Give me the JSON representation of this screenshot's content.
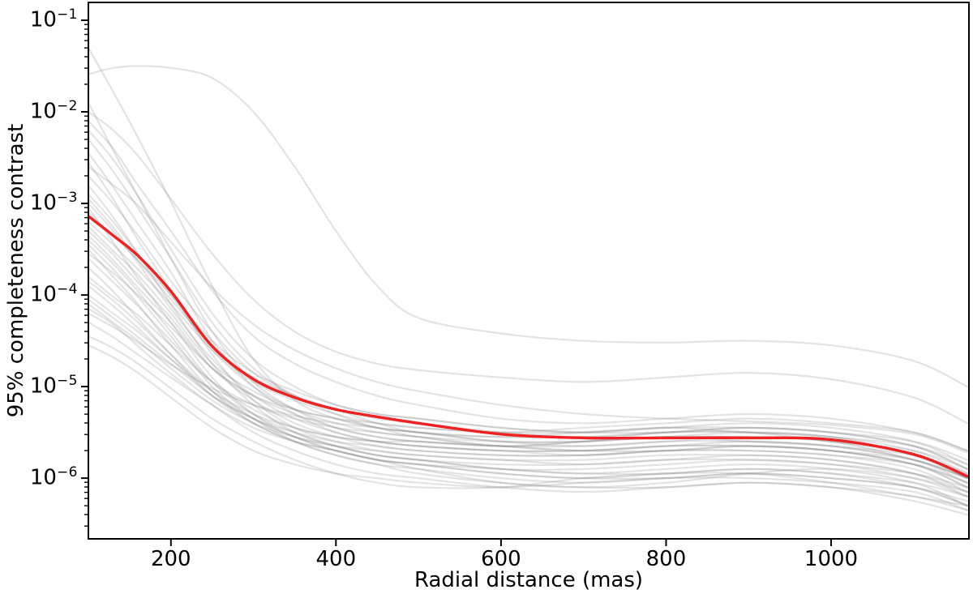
{
  "figure": {
    "background": "#ffffff",
    "colors": {
      "median_line": "#ee2222",
      "ensemble_line": "#808080",
      "ensemble_opacity": 0.22,
      "axes": "#000000",
      "text": "#000000"
    },
    "x_axis": {
      "title": "Radial distance (mas)",
      "tick_labels": [
        "200",
        "400",
        "600",
        "800",
        "1000"
      ],
      "tick_values": [
        200,
        400,
        600,
        800,
        1000
      ],
      "range_mas": [
        100,
        1167
      ]
    },
    "y_axis": {
      "title": "95% completeness contrast",
      "scale": "log",
      "tick_labels": [
        {
          "base": "10",
          "exp": "−1",
          "value": 0.1
        },
        {
          "base": "10",
          "exp": "−2",
          "value": 0.01
        },
        {
          "base": "10",
          "exp": "−3",
          "value": 0.001
        },
        {
          "base": "10",
          "exp": "−4",
          "value": 0.0001
        },
        {
          "base": "10",
          "exp": "−5",
          "value": 1e-05
        },
        {
          "base": "10",
          "exp": "−6",
          "value": 1e-06
        }
      ],
      "tick_exponents": [
        -1,
        -2,
        -3,
        -4,
        -5,
        -6
      ],
      "log10_range": [
        -6.663,
        -0.805
      ]
    }
  },
  "chart_data": {
    "type": "line",
    "title": "",
    "xlabel": "Radial distance (mas)",
    "ylabel": "95% completeness contrast",
    "x_scale": "linear",
    "y_scale": "log",
    "xlim": [
      100,
      1167
    ],
    "ylim_log10": [
      -6.663,
      -0.805
    ],
    "grid": false,
    "legend": "none",
    "x_mas": [
      100,
      130,
      160,
      200,
      250,
      300,
      350,
      400,
      450,
      500,
      600,
      700,
      800,
      900,
      1000,
      1100,
      1165
    ],
    "series": [
      {
        "name": "median contrast curve",
        "color": "#ee2222",
        "style": "solid",
        "width": 3.4,
        "log10_contrast": [
          -3.14,
          -3.35,
          -3.57,
          -3.96,
          -4.56,
          -4.92,
          -5.12,
          -5.25,
          -5.33,
          -5.4,
          -5.52,
          -5.56,
          -5.56,
          -5.56,
          -5.58,
          -5.74,
          -5.98
        ]
      }
    ],
    "ensemble": {
      "name": "individual target contrast curves",
      "color": "#808080",
      "opacity": 0.22,
      "width": 2.2,
      "curves_log10": [
        [
          -1.3,
          -1.78,
          -2.28,
          -2.98,
          -3.9,
          -4.7,
          -5.15,
          -5.35,
          -5.45,
          -5.5,
          -5.6,
          -5.65,
          -5.6,
          -5.55,
          -5.6,
          -5.8,
          -6.0
        ],
        [
          -1.59,
          -1.52,
          -1.5,
          -1.52,
          -1.63,
          -2.0,
          -2.6,
          -3.3,
          -3.9,
          -4.25,
          -4.42,
          -4.5,
          -4.52,
          -4.5,
          -4.55,
          -4.72,
          -5.0
        ],
        [
          -2.0,
          -2.2,
          -2.48,
          -2.95,
          -3.55,
          -4.05,
          -4.4,
          -4.62,
          -4.75,
          -4.82,
          -4.9,
          -4.95,
          -4.9,
          -4.85,
          -4.92,
          -5.12,
          -5.4
        ],
        [
          -2.1,
          -2.4,
          -2.8,
          -3.3,
          -3.95,
          -4.45,
          -4.75,
          -4.95,
          -5.1,
          -5.2,
          -5.35,
          -5.4,
          -5.35,
          -5.3,
          -5.35,
          -5.5,
          -5.7
        ],
        [
          -2.2,
          -2.52,
          -2.92,
          -3.5,
          -4.2,
          -4.7,
          -5.0,
          -5.2,
          -5.3,
          -5.35,
          -5.45,
          -5.5,
          -5.45,
          -5.4,
          -5.45,
          -5.6,
          -5.85
        ],
        [
          -2.3,
          -2.65,
          -3.05,
          -3.6,
          -4.3,
          -4.8,
          -5.1,
          -5.3,
          -5.45,
          -5.5,
          -5.6,
          -5.6,
          -5.55,
          -5.5,
          -5.55,
          -5.75,
          -6.0
        ],
        [
          -2.45,
          -2.82,
          -3.22,
          -3.75,
          -4.5,
          -5.0,
          -5.3,
          -5.5,
          -5.6,
          -5.65,
          -5.7,
          -5.75,
          -5.7,
          -5.65,
          -5.7,
          -5.85,
          -6.1
        ],
        [
          -2.55,
          -2.95,
          -3.4,
          -3.95,
          -4.65,
          -5.15,
          -5.45,
          -5.6,
          -5.7,
          -5.75,
          -5.8,
          -5.85,
          -5.8,
          -5.75,
          -5.8,
          -5.95,
          -6.2
        ],
        [
          -2.7,
          -3.0,
          -3.35,
          -3.85,
          -4.4,
          -4.85,
          -5.1,
          -5.25,
          -5.35,
          -5.4,
          -5.5,
          -5.55,
          -5.5,
          -5.45,
          -5.5,
          -5.65,
          -5.9
        ],
        [
          -2.8,
          -3.15,
          -3.55,
          -4.1,
          -4.75,
          -5.2,
          -5.5,
          -5.65,
          -5.75,
          -5.8,
          -5.9,
          -5.95,
          -5.9,
          -5.85,
          -5.9,
          -6.05,
          -6.3
        ],
        [
          -2.9,
          -3.2,
          -3.55,
          -4.0,
          -4.6,
          -5.0,
          -5.25,
          -5.4,
          -5.5,
          -5.55,
          -5.65,
          -5.7,
          -5.65,
          -5.6,
          -5.65,
          -5.8,
          -6.05
        ],
        [
          -3.0,
          -3.3,
          -3.65,
          -4.15,
          -4.7,
          -5.1,
          -5.35,
          -5.5,
          -5.6,
          -5.65,
          -5.7,
          -5.7,
          -5.65,
          -5.65,
          -5.7,
          -5.85,
          -6.1
        ],
        [
          -3.05,
          -3.42,
          -3.82,
          -4.3,
          -4.9,
          -5.3,
          -5.55,
          -5.7,
          -5.8,
          -5.85,
          -5.95,
          -6.0,
          -5.95,
          -5.9,
          -5.95,
          -6.1,
          -6.3
        ],
        [
          -3.1,
          -3.35,
          -3.62,
          -4.0,
          -4.5,
          -4.85,
          -5.05,
          -5.2,
          -5.3,
          -5.35,
          -5.45,
          -5.5,
          -5.5,
          -5.45,
          -5.5,
          -5.6,
          -5.8
        ],
        [
          -3.2,
          -3.45,
          -3.72,
          -4.1,
          -4.6,
          -4.95,
          -5.15,
          -5.3,
          -5.4,
          -5.45,
          -5.5,
          -5.5,
          -5.45,
          -5.45,
          -5.5,
          -5.65,
          -5.9
        ],
        [
          -3.3,
          -3.56,
          -3.86,
          -4.25,
          -4.8,
          -5.15,
          -5.4,
          -5.55,
          -5.65,
          -5.7,
          -5.75,
          -5.75,
          -5.7,
          -5.7,
          -5.75,
          -5.9,
          -6.15
        ],
        [
          -3.4,
          -3.66,
          -3.96,
          -4.4,
          -4.95,
          -5.3,
          -5.5,
          -5.65,
          -5.75,
          -5.8,
          -5.9,
          -5.9,
          -5.85,
          -5.8,
          -5.85,
          -6.0,
          -6.2
        ],
        [
          -3.5,
          -3.8,
          -4.1,
          -4.55,
          -5.05,
          -5.4,
          -5.6,
          -5.75,
          -5.85,
          -5.9,
          -6.0,
          -6.05,
          -6.0,
          -5.95,
          -6.0,
          -6.1,
          -6.25
        ],
        [
          -3.6,
          -3.86,
          -4.12,
          -4.5,
          -4.95,
          -5.25,
          -5.45,
          -5.55,
          -5.6,
          -5.65,
          -5.7,
          -5.7,
          -5.65,
          -5.65,
          -5.7,
          -5.85,
          -6.05
        ],
        [
          -3.7,
          -3.96,
          -4.26,
          -4.65,
          -5.1,
          -5.4,
          -5.6,
          -5.7,
          -5.8,
          -5.85,
          -5.9,
          -5.95,
          -5.95,
          -5.9,
          -5.95,
          -6.05,
          -6.2
        ],
        [
          -3.8,
          -4.02,
          -4.22,
          -4.55,
          -4.95,
          -5.2,
          -5.35,
          -5.45,
          -5.5,
          -5.55,
          -5.6,
          -5.6,
          -5.55,
          -5.55,
          -5.6,
          -5.75,
          -6.0
        ],
        [
          -3.9,
          -4.12,
          -4.36,
          -4.7,
          -5.1,
          -5.35,
          -5.55,
          -5.65,
          -5.7,
          -5.75,
          -5.8,
          -5.8,
          -5.75,
          -5.75,
          -5.8,
          -5.95,
          -6.15
        ],
        [
          -4.0,
          -4.2,
          -4.4,
          -4.7,
          -5.05,
          -5.3,
          -5.45,
          -5.55,
          -5.6,
          -5.6,
          -5.65,
          -5.65,
          -5.6,
          -5.6,
          -5.65,
          -5.8,
          -6.0
        ],
        [
          -4.1,
          -4.3,
          -4.5,
          -4.8,
          -5.15,
          -5.4,
          -5.55,
          -5.65,
          -5.75,
          -5.8,
          -5.85,
          -5.85,
          -5.8,
          -5.8,
          -5.85,
          -5.95,
          -6.1
        ],
        [
          -4.2,
          -4.35,
          -4.52,
          -4.76,
          -5.02,
          -5.2,
          -5.32,
          -5.4,
          -5.45,
          -5.5,
          -5.55,
          -5.55,
          -5.5,
          -5.5,
          -5.55,
          -5.7,
          -5.95
        ],
        [
          -4.3,
          -4.46,
          -4.65,
          -4.9,
          -5.2,
          -5.45,
          -5.6,
          -5.7,
          -5.8,
          -5.85,
          -5.95,
          -6.0,
          -6.0,
          -5.95,
          -6.0,
          -6.1,
          -6.3
        ],
        [
          -4.55,
          -4.68,
          -4.85,
          -5.12,
          -5.45,
          -5.7,
          -5.85,
          -5.95,
          -6.0,
          -6.05,
          -6.1,
          -6.05,
          -6.0,
          -6.0,
          -6.05,
          -6.15,
          -6.35
        ],
        [
          -4.45,
          -4.58,
          -4.75,
          -5.02,
          -5.35,
          -5.6,
          -5.8,
          -5.95,
          -6.05,
          -6.1,
          -6.1,
          -6.0,
          -5.95,
          -5.95,
          -6.05,
          -6.2,
          -6.3
        ],
        [
          -3.25,
          -3.52,
          -3.78,
          -4.2,
          -4.75,
          -5.05,
          -5.25,
          -5.35,
          -5.45,
          -5.55,
          -5.65,
          -5.6,
          -5.5,
          -5.5,
          -5.6,
          -5.7,
          -5.9
        ],
        [
          -2.95,
          -3.26,
          -3.62,
          -4.05,
          -4.55,
          -4.9,
          -5.1,
          -5.25,
          -5.4,
          -5.5,
          -5.55,
          -5.5,
          -5.45,
          -5.5,
          -5.55,
          -5.65,
          -5.85
        ],
        [
          -1.9,
          -2.42,
          -2.92,
          -3.6,
          -4.4,
          -4.95,
          -5.25,
          -5.45,
          -5.55,
          -5.6,
          -5.65,
          -5.6,
          -5.55,
          -5.6,
          -5.65,
          -5.75,
          -5.95
        ],
        [
          -2.6,
          -2.8,
          -3.02,
          -3.42,
          -3.92,
          -4.32,
          -4.6,
          -4.8,
          -4.95,
          -5.05,
          -5.2,
          -5.3,
          -5.35,
          -5.38,
          -5.42,
          -5.52,
          -5.72
        ],
        [
          -3.55,
          -3.76,
          -4.0,
          -4.35,
          -4.8,
          -5.1,
          -5.3,
          -5.45,
          -5.55,
          -5.6,
          -5.65,
          -5.7,
          -5.7,
          -5.65,
          -5.7,
          -5.8,
          -6.0
        ],
        [
          -4.05,
          -4.25,
          -4.46,
          -4.75,
          -5.1,
          -5.35,
          -5.5,
          -5.6,
          -5.65,
          -5.7,
          -5.75,
          -5.75,
          -5.7,
          -5.7,
          -5.75,
          -5.85,
          -6.05
        ],
        [
          -3.35,
          -3.62,
          -3.92,
          -4.3,
          -4.8,
          -5.1,
          -5.25,
          -5.35,
          -5.4,
          -5.45,
          -5.5,
          -5.45,
          -5.4,
          -5.35,
          -5.4,
          -5.5,
          -5.7
        ],
        [
          -3.85,
          -4.06,
          -4.3,
          -4.65,
          -5.05,
          -5.35,
          -5.55,
          -5.7,
          -5.8,
          -5.9,
          -6.05,
          -6.1,
          -6.05,
          -5.95,
          -5.9,
          -6.0,
          -6.15
        ],
        [
          -4.15,
          -4.32,
          -4.56,
          -4.86,
          -5.2,
          -5.5,
          -5.7,
          -5.85,
          -5.95,
          -6.0,
          -6.1,
          -6.15,
          -6.1,
          -6.05,
          -6.1,
          -6.2,
          -6.35
        ],
        [
          -3.45,
          -3.72,
          -4.02,
          -4.45,
          -5.0,
          -5.35,
          -5.6,
          -5.75,
          -5.85,
          -5.95,
          -6.05,
          -6.1,
          -6.1,
          -6.05,
          -6.1,
          -6.25,
          -6.4
        ]
      ]
    }
  }
}
